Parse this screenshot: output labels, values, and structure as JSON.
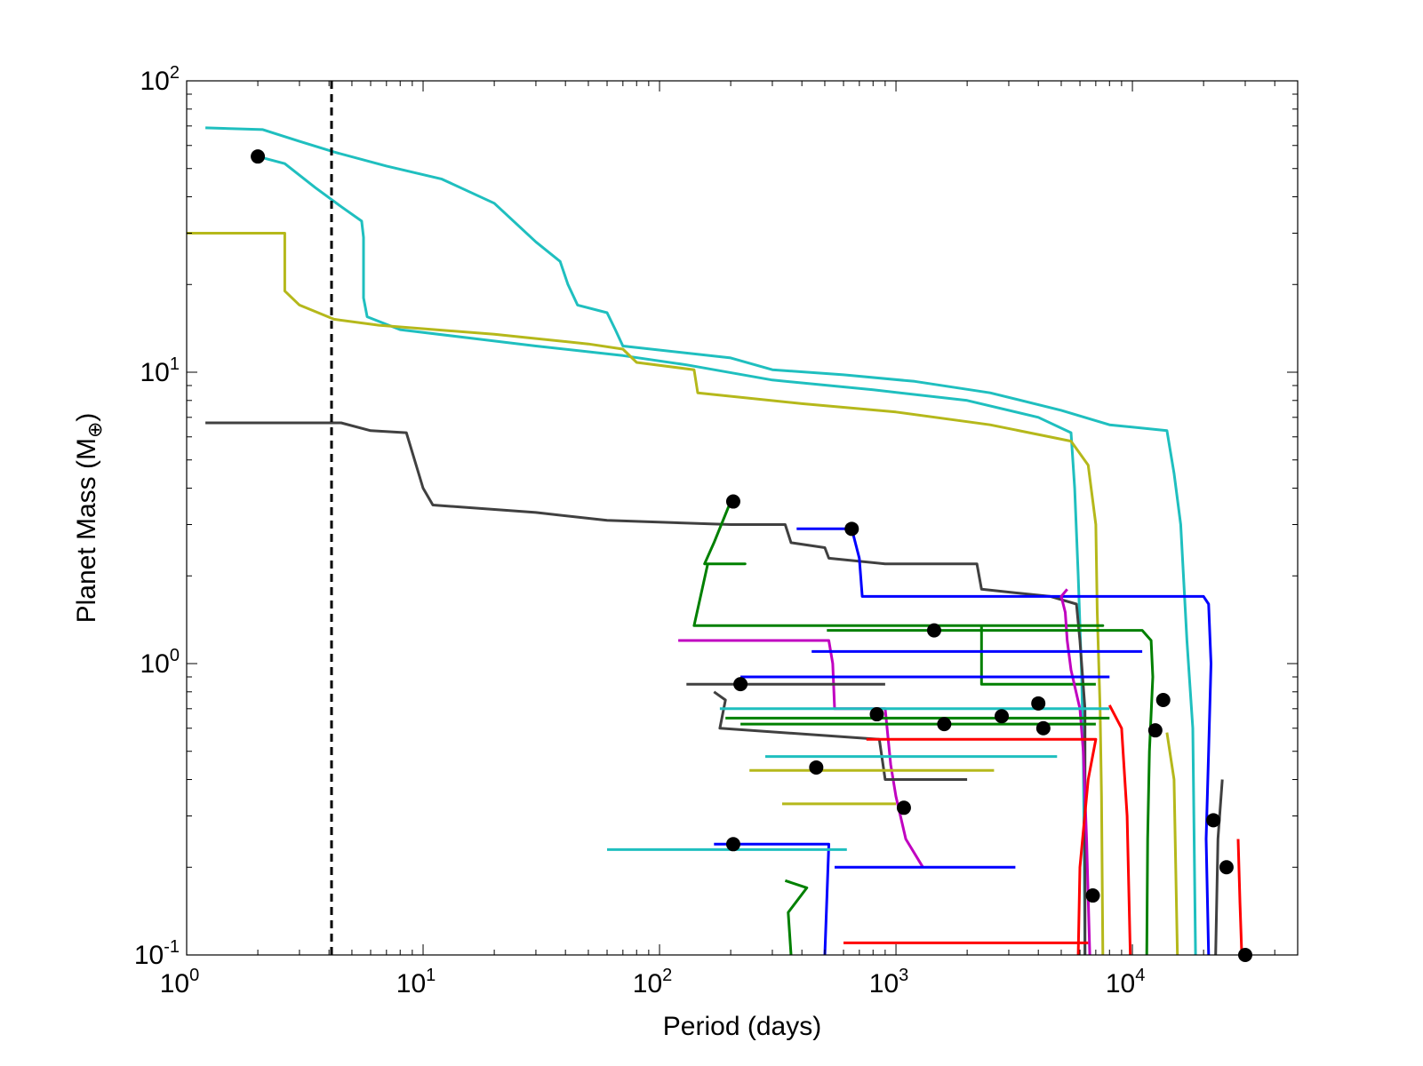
{
  "chart_data": {
    "type": "line",
    "xlabel": "Period (days)",
    "ylabel_main": "Planet Mass (M",
    "ylabel_sub": "⊕",
    "ylabel_close": ")",
    "x_scale": "log",
    "y_scale": "log",
    "xlim": [
      1,
      50000
    ],
    "ylim": [
      0.1,
      100
    ],
    "x_ticks": [
      {
        "value": 1,
        "base": "10",
        "exp": "0"
      },
      {
        "value": 10,
        "base": "10",
        "exp": "1"
      },
      {
        "value": 100,
        "base": "10",
        "exp": "2"
      },
      {
        "value": 1000,
        "base": "10",
        "exp": "3"
      },
      {
        "value": 10000,
        "base": "10",
        "exp": "4"
      }
    ],
    "y_ticks": [
      {
        "value": 0.1,
        "base": "10",
        "exp": "-1"
      },
      {
        "value": 1,
        "base": "10",
        "exp": "0"
      },
      {
        "value": 10,
        "base": "10",
        "exp": "1"
      },
      {
        "value": 100,
        "base": "10",
        "exp": "2"
      }
    ],
    "grid": false,
    "reference_line": {
      "x": 4.1,
      "style": "dashed",
      "color": "#000000"
    },
    "series": [
      {
        "color": "#1fbfbf",
        "points": [
          [
            1.2,
            69
          ],
          [
            2.1,
            68
          ],
          [
            3.0,
            62
          ],
          [
            4.2,
            57
          ],
          [
            7,
            51
          ],
          [
            12,
            46
          ],
          [
            20,
            38
          ],
          [
            30,
            28
          ],
          [
            38,
            24
          ],
          [
            41,
            20
          ],
          [
            45,
            17
          ],
          [
            60,
            16
          ],
          [
            65,
            14
          ],
          [
            70,
            12.3
          ],
          [
            200,
            11.2
          ],
          [
            300,
            10.2
          ],
          [
            600,
            9.8
          ],
          [
            1200,
            9.3
          ],
          [
            2500,
            8.5
          ],
          [
            5000,
            7.4
          ],
          [
            8000,
            6.6
          ],
          [
            14000,
            6.3
          ],
          [
            15000,
            4.5
          ],
          [
            16000,
            3.0
          ],
          [
            17000,
            1.2
          ],
          [
            18000,
            0.6
          ],
          [
            18500,
            0.1
          ]
        ]
      },
      {
        "color": "#1fbfbf",
        "points": [
          [
            2.0,
            55
          ],
          [
            2.6,
            52
          ],
          [
            3.5,
            43
          ],
          [
            4.5,
            37
          ],
          [
            5.5,
            33
          ],
          [
            5.6,
            29
          ],
          [
            5.6,
            18
          ],
          [
            5.8,
            15.5
          ],
          [
            8,
            14
          ],
          [
            30,
            12.3
          ],
          [
            70,
            11.4
          ],
          [
            130,
            10.6
          ],
          [
            300,
            9.4
          ],
          [
            800,
            8.7
          ],
          [
            2000,
            8.0
          ],
          [
            4000,
            7.0
          ],
          [
            5500,
            6.2
          ],
          [
            5700,
            4.0
          ],
          [
            5900,
            2.0
          ],
          [
            6100,
            0.9
          ],
          [
            6200,
            0.5
          ],
          [
            6300,
            0.1
          ]
        ]
      },
      {
        "color": "#b5b81b",
        "points": [
          [
            1.0,
            30
          ],
          [
            2.6,
            30
          ],
          [
            2.6,
            19
          ],
          [
            3.0,
            17
          ],
          [
            4.2,
            15.2
          ],
          [
            6.5,
            14.5
          ],
          [
            20,
            13.5
          ],
          [
            50,
            12.5
          ],
          [
            70,
            12.0
          ],
          [
            80,
            10.8
          ],
          [
            140,
            10.2
          ],
          [
            145,
            8.5
          ],
          [
            400,
            7.8
          ],
          [
            1000,
            7.3
          ],
          [
            2500,
            6.6
          ],
          [
            5500,
            5.8
          ],
          [
            6500,
            4.8
          ],
          [
            7000,
            3.0
          ],
          [
            7100,
            1.5
          ],
          [
            7300,
            0.7
          ],
          [
            7400,
            0.35
          ],
          [
            7500,
            0.1
          ]
        ]
      },
      {
        "color": "#404040",
        "points": [
          [
            1.2,
            6.7
          ],
          [
            4.5,
            6.7
          ],
          [
            6,
            6.3
          ],
          [
            8.5,
            6.2
          ],
          [
            10,
            4.0
          ],
          [
            11,
            3.5
          ],
          [
            30,
            3.3
          ],
          [
            60,
            3.1
          ],
          [
            200,
            3.0
          ],
          [
            340,
            3.0
          ],
          [
            360,
            2.6
          ],
          [
            500,
            2.5
          ],
          [
            520,
            2.3
          ],
          [
            900,
            2.2
          ],
          [
            1500,
            2.2
          ],
          [
            2200,
            2.2
          ],
          [
            2300,
            1.8
          ],
          [
            4500,
            1.7
          ],
          [
            5800,
            1.6
          ],
          [
            6000,
            1.2
          ],
          [
            6300,
            0.7
          ],
          [
            6300,
            0.1
          ]
        ]
      },
      {
        "color": "#0000ff",
        "points": [
          [
            380,
            2.9
          ],
          [
            650,
            2.9
          ],
          [
            700,
            2.3
          ],
          [
            720,
            1.7
          ],
          [
            20000,
            1.7
          ],
          [
            21000,
            1.6
          ],
          [
            21500,
            1.0
          ],
          [
            21000,
            0.5
          ],
          [
            20500,
            0.25
          ],
          [
            21000,
            0.1
          ]
        ]
      },
      {
        "color": "#008000",
        "points": [
          [
            200,
            3.6
          ],
          [
            170,
            2.6
          ],
          [
            155,
            2.2
          ],
          [
            230,
            2.2
          ],
          [
            160,
            2.2
          ],
          [
            140,
            1.35
          ],
          [
            7500,
            1.35
          ],
          [
            2300,
            1.35
          ],
          [
            2300,
            0.85
          ],
          [
            7000,
            0.85
          ]
        ]
      },
      {
        "color": "#c000c0",
        "points": [
          [
            5300,
            1.8
          ],
          [
            5000,
            1.7
          ],
          [
            5200,
            1.5
          ],
          [
            5300,
            1.2
          ],
          [
            5500,
            0.95
          ],
          [
            6000,
            0.7
          ],
          [
            6200,
            0.5
          ],
          [
            6400,
            0.25
          ],
          [
            6600,
            0.1
          ]
        ]
      },
      {
        "color": "#008000",
        "points": [
          [
            510,
            1.3
          ],
          [
            11000,
            1.3
          ],
          [
            12000,
            1.2
          ],
          [
            12200,
            0.9
          ],
          [
            11800,
            0.5
          ],
          [
            11600,
            0.25
          ],
          [
            11500,
            0.1
          ]
        ]
      },
      {
        "color": "#c000c0",
        "points": [
          [
            120,
            1.2
          ],
          [
            520,
            1.2
          ],
          [
            540,
            1.0
          ],
          [
            550,
            0.7
          ],
          [
            900,
            0.7
          ],
          [
            950,
            0.45
          ],
          [
            1000,
            0.35
          ],
          [
            1100,
            0.25
          ],
          [
            1300,
            0.2
          ]
        ]
      },
      {
        "color": "#0000ff",
        "points": [
          [
            440,
            1.1
          ],
          [
            11000,
            1.1
          ]
        ]
      },
      {
        "color": "#0000ff",
        "points": [
          [
            220,
            0.9
          ],
          [
            8000,
            0.9
          ]
        ]
      },
      {
        "color": "#404040",
        "points": [
          [
            130,
            0.85
          ],
          [
            900,
            0.85
          ]
        ]
      },
      {
        "color": "#404040",
        "points": [
          [
            170,
            0.8
          ],
          [
            190,
            0.75
          ],
          [
            180,
            0.6
          ],
          [
            850,
            0.55
          ],
          [
            900,
            0.4
          ],
          [
            2000,
            0.4
          ]
        ]
      },
      {
        "color": "#1fbfbf",
        "points": [
          [
            180,
            0.7
          ],
          [
            8000,
            0.7
          ]
        ]
      },
      {
        "color": "#008000",
        "points": [
          [
            190,
            0.65
          ],
          [
            8000,
            0.65
          ]
        ]
      },
      {
        "color": "#008000",
        "points": [
          [
            220,
            0.62
          ],
          [
            7000,
            0.62
          ]
        ]
      },
      {
        "color": "#ff0000",
        "points": [
          [
            750,
            0.55
          ],
          [
            7000,
            0.55
          ],
          [
            6500,
            0.4
          ],
          [
            6000,
            0.2
          ],
          [
            5900,
            0.1
          ]
        ]
      },
      {
        "color": "#1fbfbf",
        "points": [
          [
            280,
            0.48
          ],
          [
            4800,
            0.48
          ]
        ]
      },
      {
        "color": "#b5b81b",
        "points": [
          [
            240,
            0.43
          ],
          [
            2600,
            0.43
          ]
        ]
      },
      {
        "color": "#b5b81b",
        "points": [
          [
            330,
            0.33
          ],
          [
            1000,
            0.33
          ]
        ]
      },
      {
        "color": "#0000ff",
        "points": [
          [
            170,
            0.24
          ],
          [
            520,
            0.24
          ],
          [
            500,
            0.1
          ]
        ]
      },
      {
        "color": "#1fbfbf",
        "points": [
          [
            60,
            0.23
          ],
          [
            620,
            0.23
          ]
        ]
      },
      {
        "color": "#0000ff",
        "points": [
          [
            550,
            0.2
          ],
          [
            3200,
            0.2
          ]
        ]
      },
      {
        "color": "#008000",
        "points": [
          [
            340,
            0.18
          ],
          [
            420,
            0.17
          ],
          [
            350,
            0.14
          ],
          [
            360,
            0.1
          ]
        ]
      },
      {
        "color": "#ff0000",
        "points": [
          [
            600,
            0.11
          ],
          [
            6500,
            0.11
          ]
        ]
      },
      {
        "color": "#ff0000",
        "points": [
          [
            8000,
            0.72
          ],
          [
            9000,
            0.6
          ],
          [
            9500,
            0.3
          ],
          [
            9800,
            0.1
          ]
        ]
      },
      {
        "color": "#b5b81b",
        "points": [
          [
            14000,
            0.58
          ],
          [
            15000,
            0.4
          ],
          [
            15500,
            0.1
          ]
        ]
      },
      {
        "color": "#404040",
        "points": [
          [
            24000,
            0.4
          ],
          [
            23000,
            0.25
          ],
          [
            22500,
            0.1
          ]
        ]
      },
      {
        "color": "#ff0000",
        "points": [
          [
            28000,
            0.25
          ],
          [
            28500,
            0.15
          ],
          [
            29000,
            0.1
          ]
        ]
      }
    ],
    "endpoints": [
      [
        2.0,
        55
      ],
      [
        205,
        3.6
      ],
      [
        650,
        2.9
      ],
      [
        1450,
        1.3
      ],
      [
        220,
        0.85
      ],
      [
        830,
        0.67
      ],
      [
        1600,
        0.62
      ],
      [
        2800,
        0.66
      ],
      [
        4000,
        0.73
      ],
      [
        4200,
        0.6
      ],
      [
        12500,
        0.59
      ],
      [
        13500,
        0.75
      ],
      [
        460,
        0.44
      ],
      [
        1080,
        0.32
      ],
      [
        205,
        0.24
      ],
      [
        6800,
        0.16
      ],
      [
        22000,
        0.29
      ],
      [
        25000,
        0.2
      ],
      [
        30000,
        0.1
      ]
    ]
  }
}
